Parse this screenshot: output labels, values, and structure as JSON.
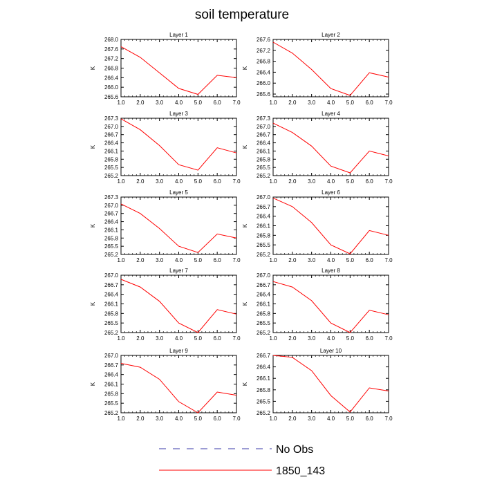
{
  "title": "soil temperature",
  "colors": {
    "series": "#ff0000",
    "obs": "#3a3aa8",
    "axis": "#000000"
  },
  "legend": {
    "placement": "bottom-center",
    "items": [
      {
        "label": "No Obs",
        "style": "dashed",
        "color": "#3a3aa8"
      },
      {
        "label": "1850_143",
        "style": "solid",
        "color": "#ff0000"
      }
    ]
  },
  "chart_data": [
    {
      "type": "line",
      "title": "Layer 1",
      "ylabel": "K",
      "x": [
        1,
        2,
        3,
        4,
        5,
        6,
        7
      ],
      "xlim": [
        1,
        7
      ],
      "xticks": [
        "1.0",
        "2.0",
        "3.0",
        "4.0",
        "5.0",
        "6.0",
        "7.0"
      ],
      "ylim": [
        265.6,
        268.0
      ],
      "yticks": [
        "265.6",
        "266.0",
        "266.4",
        "266.8",
        "267.2",
        "267.6",
        "268.0"
      ],
      "series": [
        {
          "name": "1850_143",
          "values": [
            267.7,
            267.25,
            266.6,
            265.95,
            265.7,
            266.5,
            266.4
          ]
        }
      ]
    },
    {
      "type": "line",
      "title": "Layer 2",
      "ylabel": "K",
      "x": [
        1,
        2,
        3,
        4,
        5,
        6,
        7
      ],
      "xlim": [
        1,
        7
      ],
      "xticks": [
        "1.0",
        "2.0",
        "3.0",
        "4.0",
        "5.0",
        "6.0",
        "7.0"
      ],
      "ylim": [
        265.5,
        267.6
      ],
      "yticks": [
        "265.6",
        "266.0",
        "266.4",
        "266.8",
        "267.2",
        "267.6"
      ],
      "series": [
        {
          "name": "1850_143",
          "values": [
            267.5,
            267.1,
            266.5,
            265.8,
            265.55,
            266.38,
            266.22
          ]
        }
      ]
    },
    {
      "type": "line",
      "title": "Layer 3",
      "ylabel": "K",
      "x": [
        1,
        2,
        3,
        4,
        5,
        6,
        7
      ],
      "xlim": [
        1,
        7
      ],
      "xticks": [
        "1.0",
        "2.0",
        "3.0",
        "4.0",
        "5.0",
        "6.0",
        "7.0"
      ],
      "ylim": [
        265.2,
        267.3
      ],
      "yticks": [
        "265.2",
        "265.5",
        "265.8",
        "266.1",
        "266.4",
        "266.7",
        "267.0",
        "267.3"
      ],
      "series": [
        {
          "name": "1850_143",
          "values": [
            267.28,
            266.88,
            266.3,
            265.6,
            265.4,
            266.22,
            266.03
          ]
        }
      ]
    },
    {
      "type": "line",
      "title": "Layer 4",
      "ylabel": "K",
      "x": [
        1,
        2,
        3,
        4,
        5,
        6,
        7
      ],
      "xlim": [
        1,
        7
      ],
      "xticks": [
        "1.0",
        "2.0",
        "3.0",
        "4.0",
        "5.0",
        "6.0",
        "7.0"
      ],
      "ylim": [
        265.2,
        267.3
      ],
      "yticks": [
        "265.2",
        "265.5",
        "265.8",
        "266.1",
        "266.4",
        "266.7",
        "267.0",
        "267.3"
      ],
      "series": [
        {
          "name": "1850_143",
          "values": [
            267.12,
            266.78,
            266.28,
            265.55,
            265.3,
            266.1,
            265.92
          ]
        }
      ]
    },
    {
      "type": "line",
      "title": "Layer 5",
      "ylabel": "K",
      "x": [
        1,
        2,
        3,
        4,
        5,
        6,
        7
      ],
      "xlim": [
        1,
        7
      ],
      "xticks": [
        "1.0",
        "2.0",
        "3.0",
        "4.0",
        "5.0",
        "6.0",
        "7.0"
      ],
      "ylim": [
        265.2,
        267.3
      ],
      "yticks": [
        "265.2",
        "265.5",
        "265.8",
        "266.1",
        "266.4",
        "266.7",
        "267.0",
        "267.3"
      ],
      "series": [
        {
          "name": "1850_143",
          "values": [
            267.05,
            266.7,
            266.15,
            265.5,
            265.27,
            265.95,
            265.8
          ]
        }
      ]
    },
    {
      "type": "line",
      "title": "Layer 6",
      "ylabel": "K",
      "x": [
        1,
        2,
        3,
        4,
        5,
        6,
        7
      ],
      "xlim": [
        1,
        7
      ],
      "xticks": [
        "1.0",
        "2.0",
        "3.0",
        "4.0",
        "5.0",
        "6.0",
        "7.0"
      ],
      "ylim": [
        265.2,
        267.0
      ],
      "yticks": [
        "265.2",
        "265.5",
        "265.8",
        "266.1",
        "266.4",
        "266.7",
        "267.0"
      ],
      "series": [
        {
          "name": "1850_143",
          "values": [
            266.97,
            266.7,
            266.2,
            265.5,
            265.22,
            265.95,
            265.8
          ]
        }
      ]
    },
    {
      "type": "line",
      "title": "Layer 7",
      "ylabel": "K",
      "x": [
        1,
        2,
        3,
        4,
        5,
        6,
        7
      ],
      "xlim": [
        1,
        7
      ],
      "xticks": [
        "1.0",
        "2.0",
        "3.0",
        "4.0",
        "5.0",
        "6.0",
        "7.0"
      ],
      "ylim": [
        265.2,
        267.0
      ],
      "yticks": [
        "265.2",
        "265.5",
        "265.8",
        "266.1",
        "266.4",
        "266.7",
        "267.0"
      ],
      "series": [
        {
          "name": "1850_143",
          "values": [
            266.87,
            266.63,
            266.18,
            265.5,
            265.2,
            265.92,
            265.78
          ]
        }
      ]
    },
    {
      "type": "line",
      "title": "Layer 8",
      "ylabel": "K",
      "x": [
        1,
        2,
        3,
        4,
        5,
        6,
        7
      ],
      "xlim": [
        1,
        7
      ],
      "xticks": [
        "1.0",
        "2.0",
        "3.0",
        "4.0",
        "5.0",
        "6.0",
        "7.0"
      ],
      "ylim": [
        265.2,
        267.0
      ],
      "yticks": [
        "265.2",
        "265.5",
        "265.8",
        "266.1",
        "266.4",
        "266.7",
        "267.0"
      ],
      "series": [
        {
          "name": "1850_143",
          "values": [
            266.8,
            266.63,
            266.2,
            265.5,
            265.2,
            265.9,
            265.76
          ]
        }
      ]
    },
    {
      "type": "line",
      "title": "Layer 9",
      "ylabel": "K",
      "x": [
        1,
        2,
        3,
        4,
        5,
        6,
        7
      ],
      "xlim": [
        1,
        7
      ],
      "xticks": [
        "1.0",
        "2.0",
        "3.0",
        "4.0",
        "5.0",
        "6.0",
        "7.0"
      ],
      "ylim": [
        265.2,
        267.0
      ],
      "yticks": [
        "265.2",
        "265.5",
        "265.8",
        "266.1",
        "266.4",
        "266.7",
        "267.0"
      ],
      "series": [
        {
          "name": "1850_143",
          "values": [
            266.75,
            266.63,
            266.25,
            265.55,
            265.2,
            265.85,
            265.75
          ]
        }
      ]
    },
    {
      "type": "line",
      "title": "Layer 10",
      "ylabel": "K",
      "x": [
        1,
        2,
        3,
        4,
        5,
        6,
        7
      ],
      "xlim": [
        1,
        7
      ],
      "xticks": [
        "1.0",
        "2.0",
        "3.0",
        "4.0",
        "5.0",
        "6.0",
        "7.0"
      ],
      "ylim": [
        265.2,
        266.7
      ],
      "yticks": [
        "265.2",
        "265.5",
        "265.8",
        "266.1",
        "266.4",
        "266.7"
      ],
      "series": [
        {
          "name": "1850_143",
          "values": [
            266.7,
            266.65,
            266.3,
            265.65,
            265.22,
            265.85,
            265.77
          ]
        }
      ]
    }
  ]
}
